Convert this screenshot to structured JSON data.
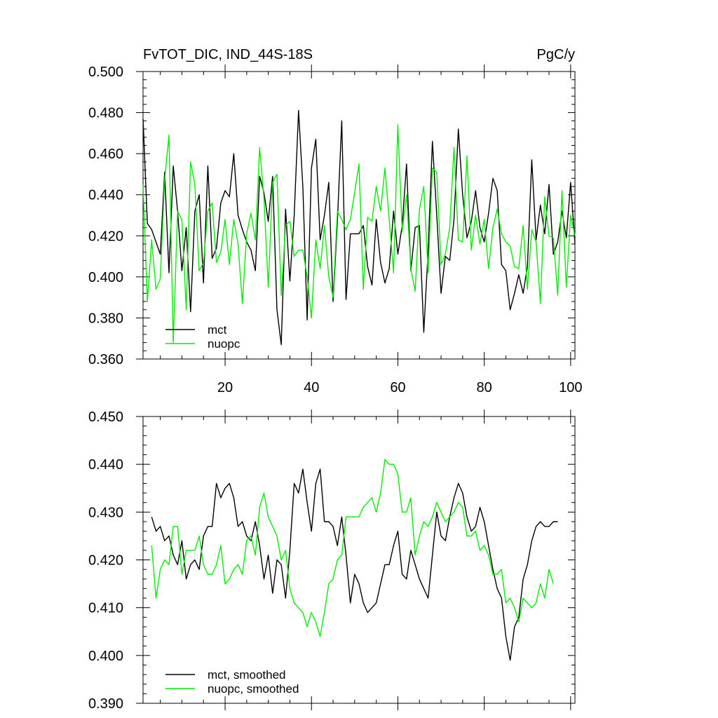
{
  "chart_data": [
    {
      "type": "line",
      "title": "FvTOT_DIC, IND_44S-18S",
      "units": "PgC/y",
      "xlabel": "",
      "ylabel": "",
      "xlim": [
        1,
        101
      ],
      "ylim": [
        0.36,
        0.5
      ],
      "x_ticks": [
        20,
        40,
        60,
        80,
        100
      ],
      "y_ticks": [
        "0.360",
        "0.380",
        "0.400",
        "0.420",
        "0.440",
        "0.460",
        "0.480",
        "0.500"
      ],
      "legend_position": "bottom-left",
      "x_start": 1,
      "series": [
        {
          "name": "mct",
          "color": "#000000",
          "values": [
            0.477,
            0.426,
            0.423,
            0.417,
            0.411,
            0.451,
            0.402,
            0.454,
            0.432,
            0.403,
            0.424,
            0.383,
            0.432,
            0.44,
            0.397,
            0.454,
            0.409,
            0.414,
            0.436,
            0.442,
            0.439,
            0.46,
            0.43,
            0.423,
            0.417,
            0.413,
            0.403,
            0.449,
            0.441,
            0.427,
            0.449,
            0.384,
            0.367,
            0.433,
            0.398,
            0.43,
            0.481,
            0.444,
            0.379,
            0.453,
            0.467,
            0.418,
            0.43,
            0.446,
            0.388,
            0.427,
            0.476,
            0.389,
            0.421,
            0.421,
            0.421,
            0.425,
            0.405,
            0.396,
            0.428,
            0.407,
            0.397,
            0.404,
            0.432,
            0.411,
            0.425,
            0.455,
            0.403,
            0.424,
            0.425,
            0.373,
            0.413,
            0.466,
            0.43,
            0.392,
            0.41,
            0.408,
            0.428,
            0.472,
            0.44,
            0.419,
            0.427,
            0.442,
            0.424,
            0.417,
            0.431,
            0.448,
            0.442,
            0.406,
            0.403,
            0.384,
            0.392,
            0.401,
            0.392,
            0.405,
            0.457,
            0.418,
            0.435,
            0.421,
            0.445,
            0.411,
            0.417,
            0.432,
            0.419,
            0.446,
            0.416
          ]
        },
        {
          "name": "nuopc",
          "color": "#00ee00",
          "values": [
            0.445,
            0.388,
            0.418,
            0.394,
            0.399,
            0.447,
            0.469,
            0.368,
            0.432,
            0.428,
            0.384,
            0.456,
            0.445,
            0.403,
            0.407,
            0.432,
            0.436,
            0.407,
            0.412,
            0.428,
            0.406,
            0.428,
            0.416,
            0.387,
            0.421,
            0.431,
            0.418,
            0.463,
            0.438,
            0.395,
            0.446,
            0.45,
            0.391,
            0.425,
            0.427,
            0.41,
            0.413,
            0.413,
            0.4,
            0.38,
            0.418,
            0.404,
            0.425,
            0.4,
            0.39,
            0.432,
            0.428,
            0.423,
            0.428,
            0.441,
            0.455,
            0.394,
            0.429,
            0.427,
            0.444,
            0.432,
            0.453,
            0.428,
            0.402,
            0.474,
            0.422,
            0.44,
            0.404,
            0.393,
            0.433,
            0.444,
            0.402,
            0.453,
            0.451,
            0.406,
            0.411,
            0.424,
            0.463,
            0.418,
            0.417,
            0.459,
            0.413,
            0.43,
            0.416,
            0.428,
            0.404,
            0.424,
            0.433,
            0.421,
            0.417,
            0.415,
            0.405,
            0.404,
            0.425,
            0.394,
            0.423,
            0.417,
            0.387,
            0.439,
            0.42,
            0.419,
            0.391,
            0.442,
            0.395,
            0.43,
            0.42
          ]
        }
      ]
    },
    {
      "type": "line",
      "title": "",
      "xlabel": "",
      "ylabel": "",
      "xlim": [
        1,
        101
      ],
      "ylim": [
        0.39,
        0.45
      ],
      "x_ticks": [
        20,
        40,
        60,
        80,
        100
      ],
      "y_ticks": [
        "0.390",
        "0.400",
        "0.410",
        "0.420",
        "0.430",
        "0.440",
        "0.450"
      ],
      "legend_position": "bottom-left",
      "x_start": 3,
      "series": [
        {
          "name": "mct, smoothed",
          "color": "#000000",
          "values": [
            0.429,
            0.426,
            0.427,
            0.424,
            0.425,
            0.421,
            0.419,
            0.424,
            0.416,
            0.419,
            0.42,
            0.418,
            0.425,
            0.427,
            0.427,
            0.436,
            0.433,
            0.435,
            0.436,
            0.433,
            0.427,
            0.428,
            0.425,
            0.424,
            0.428,
            0.423,
            0.416,
            0.421,
            0.413,
            0.42,
            0.419,
            0.412,
            0.422,
            0.436,
            0.434,
            0.439,
            0.432,
            0.426,
            0.436,
            0.439,
            0.428,
            0.428,
            0.427,
            0.423,
            0.429,
            0.421,
            0.411,
            0.417,
            0.415,
            0.411,
            0.409,
            0.41,
            0.411,
            0.415,
            0.419,
            0.419,
            0.423,
            0.426,
            0.417,
            0.416,
            0.422,
            0.419,
            0.416,
            0.414,
            0.412,
            0.421,
            0.43,
            0.425,
            0.424,
            0.429,
            0.433,
            0.436,
            0.434,
            0.429,
            0.426,
            0.427,
            0.431,
            0.428,
            0.423,
            0.418,
            0.414,
            0.412,
            0.404,
            0.399,
            0.406,
            0.408,
            0.416,
            0.419,
            0.424,
            0.427,
            0.428,
            0.427,
            0.427,
            0.428,
            0.428
          ]
        },
        {
          "name": "nuopc, smoothed",
          "color": "#00ee00",
          "values": [
            0.423,
            0.412,
            0.418,
            0.42,
            0.419,
            0.427,
            0.427,
            0.417,
            0.422,
            0.422,
            0.422,
            0.425,
            0.419,
            0.417,
            0.417,
            0.419,
            0.423,
            0.415,
            0.416,
            0.418,
            0.419,
            0.417,
            0.424,
            0.425,
            0.421,
            0.431,
            0.434,
            0.429,
            0.427,
            0.425,
            0.42,
            0.422,
            0.414,
            0.411,
            0.41,
            0.409,
            0.406,
            0.409,
            0.407,
            0.404,
            0.409,
            0.415,
            0.416,
            0.42,
            0.421,
            0.429,
            0.429,
            0.429,
            0.429,
            0.431,
            0.432,
            0.433,
            0.43,
            0.434,
            0.441,
            0.44,
            0.44,
            0.438,
            0.43,
            0.43,
            0.433,
            0.421,
            0.425,
            0.428,
            0.427,
            0.429,
            0.432,
            0.43,
            0.428,
            0.429,
            0.43,
            0.432,
            0.431,
            0.425,
            0.425,
            0.426,
            0.422,
            0.423,
            0.421,
            0.417,
            0.417,
            0.418,
            0.411,
            0.412,
            0.41,
            0.407,
            0.412,
            0.411,
            0.41,
            0.411,
            0.415,
            0.412,
            0.418,
            0.415
          ]
        }
      ]
    }
  ]
}
